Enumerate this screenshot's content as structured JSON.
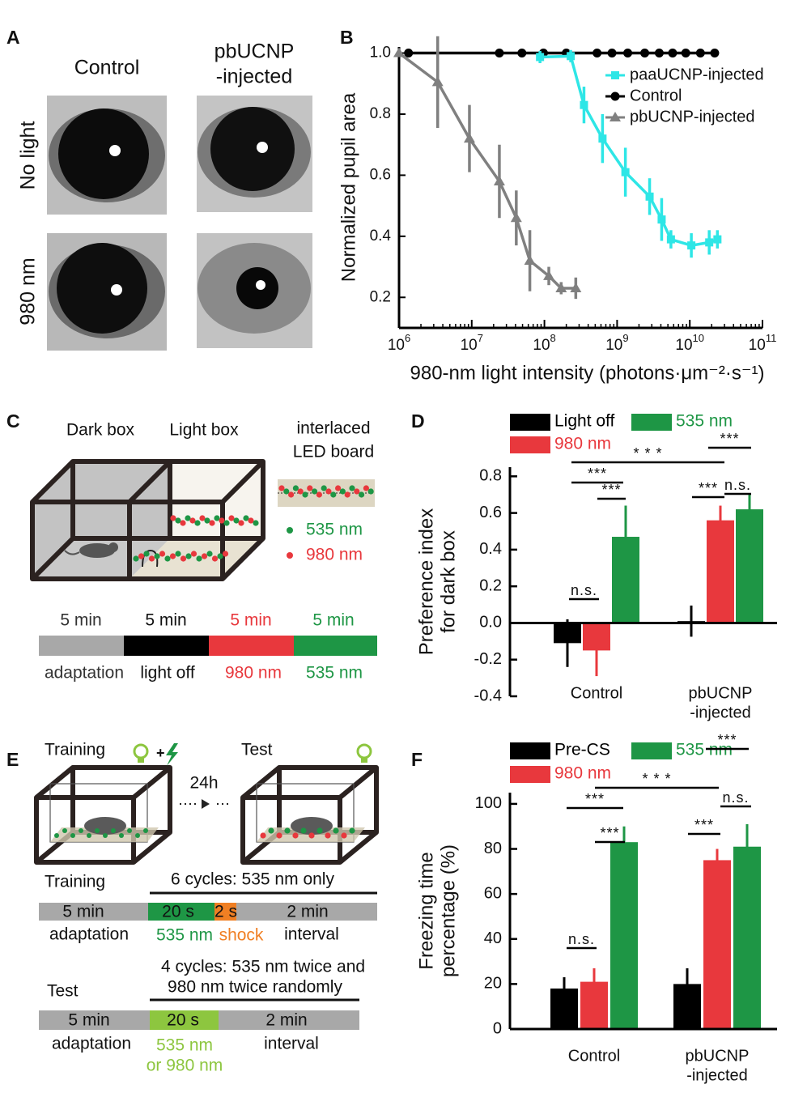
{
  "panel_letters": [
    "A",
    "B",
    "C",
    "D",
    "E",
    "F"
  ],
  "panel_a": {
    "col_control": "Control",
    "col_pb_1": "pbUCNP",
    "col_pb_2": "-injected",
    "row_1": "No light",
    "row_2": "980 nm"
  },
  "panel_c": {
    "dark_box": "Dark box",
    "light_box": "Light box",
    "board_1": "interlaced",
    "board_2": "LED board",
    "led_green": "535 nm",
    "led_red": "980 nm",
    "durations": [
      "5 min",
      "5 min",
      "5 min",
      "5 min"
    ],
    "phases": [
      "adaptation",
      "light off",
      "980 nm",
      "535 nm"
    ]
  },
  "panel_e": {
    "training": "Training",
    "test": "Test",
    "delay": "24h",
    "training_row": {
      "label": "Training",
      "cycles": "6 cycles: 535 nm only",
      "segments": [
        "5 min",
        "20 s",
        "2 s",
        "2 min"
      ],
      "phases": [
        "adaptation",
        "535 nm",
        "shock",
        "interval"
      ]
    },
    "test_row": {
      "label": "Test",
      "cycles": [
        "4 cycles: 535 nm twice and",
        "980 nm twice randomly"
      ],
      "segments": [
        "5 min",
        "20 s",
        "2 min"
      ],
      "phases": [
        "adaptation",
        "535 nm",
        "or 980 nm",
        "interval"
      ]
    }
  },
  "chart_data": [
    {
      "type": "line",
      "ylabel": "Normalized pupil area",
      "xlabel": "980-nm light intensity (photons·μm⁻²·s⁻¹)",
      "xscale": "log",
      "xlim": [
        1000000,
        100000000000
      ],
      "xticks": [
        {
          "value": 1000000,
          "label": "10",
          "exponent": "6"
        },
        {
          "value": 10000000,
          "label": "10",
          "exponent": "7"
        },
        {
          "value": 100000000,
          "label": "10",
          "exponent": "8"
        },
        {
          "value": 1000000000,
          "label": "10",
          "exponent": "9"
        },
        {
          "value": 10000000000,
          "label": "10",
          "exponent": "10"
        },
        {
          "value": 100000000000,
          "label": "10",
          "exponent": "11"
        }
      ],
      "ylim": [
        0.1,
        1.02
      ],
      "yticks": [
        {
          "value": 1,
          "label": "1.0"
        },
        0.8,
        0.6,
        0.4,
        0.2
      ],
      "legend": "upper right",
      "series": [
        {
          "name": "paaUCNP-injected",
          "color": "#2ee6e6",
          "marker": "square",
          "x": [
            87000000,
            230000000,
            350000000,
            630000000,
            1300000000,
            2800000000,
            4100000000,
            5500000000,
            10500000000,
            18500000000,
            24000000000
          ],
          "values": [
            0.987,
            0.99,
            0.83,
            0.72,
            0.61,
            0.53,
            0.455,
            0.39,
            0.37,
            0.38,
            0.39
          ],
          "errors": [
            0.02,
            0.02,
            0.06,
            0.08,
            0.08,
            0.06,
            0.07,
            0.03,
            0.04,
            0.04,
            0.03
          ]
        },
        {
          "name": "Control",
          "color": "#000000",
          "marker": "circle",
          "x": [
            1350000,
            24000000,
            49000000,
            97000000,
            200000000,
            530000000,
            850000000,
            1400000000,
            2400000000,
            3800000000,
            5800000000,
            8800000000,
            14000000000,
            22000000000
          ],
          "values": [
            1,
            1,
            1,
            1,
            1,
            1,
            1,
            1,
            1,
            1,
            1,
            1,
            1,
            1
          ]
        },
        {
          "name": "pbUCNP-injected",
          "color": "#808080",
          "marker": "triangle",
          "x": [
            1000000,
            3400000,
            9300000,
            24000000,
            41000000,
            63000000,
            115000000,
            170000000,
            270000000
          ],
          "values": [
            1,
            0.905,
            0.72,
            0.58,
            0.46,
            0.32,
            0.27,
            0.23,
            0.23
          ],
          "errors": [
            0,
            0.15,
            0.11,
            0.12,
            0.09,
            0.1,
            0.03,
            0.02,
            0.035
          ]
        }
      ]
    },
    {
      "type": "bar",
      "ylabel": [
        "Preference index",
        "for dark box"
      ],
      "categories": [
        [
          "Control"
        ],
        [
          "pbUCNP",
          "-injected"
        ]
      ],
      "ylim": [
        -0.4,
        0.85
      ],
      "yticks": [
        0.8,
        0.6,
        0.4,
        0.2,
        {
          "value": 0,
          "label": "0.0"
        },
        -0.2,
        -0.4
      ],
      "series": [
        {
          "name": "Light off",
          "color": "#000000",
          "values": [
            -0.11,
            0.01
          ],
          "errors": [
            0.13,
            0.085
          ]
        },
        {
          "name": "980 nm",
          "color": "#e8383d",
          "values": [
            -0.15,
            0.56
          ],
          "errors": [
            0.14,
            0.08
          ]
        },
        {
          "name": "535 nm",
          "color": "#1e9645",
          "values": [
            0.47,
            0.62
          ],
          "errors": [
            0.17,
            0.08
          ]
        }
      ],
      "annotations": [
        "***",
        "* * *",
        "n.s.",
        "***",
        "***",
        "***",
        "n.s."
      ]
    },
    {
      "type": "bar",
      "ylabel": [
        "Freezing time",
        "percentage (%)"
      ],
      "categories": [
        [
          "Control"
        ],
        [
          "pbUCNP",
          "-injected"
        ]
      ],
      "ylim": [
        0,
        105
      ],
      "yticks": [
        100,
        80,
        60,
        40,
        20,
        0
      ],
      "series": [
        {
          "name": "Pre-CS",
          "color": "#000000",
          "values": [
            18,
            20
          ],
          "errors": [
            5,
            7
          ]
        },
        {
          "name": "980 nm",
          "color": "#e8383d",
          "values": [
            21,
            75
          ],
          "errors": [
            6,
            5
          ]
        },
        {
          "name": "535 nm",
          "color": "#1e9645",
          "values": [
            83,
            81
          ],
          "errors": [
            7,
            10
          ]
        }
      ],
      "annotations": [
        "***",
        "* * *",
        "n.s.",
        "***",
        "***",
        "***",
        "n.s."
      ]
    }
  ]
}
